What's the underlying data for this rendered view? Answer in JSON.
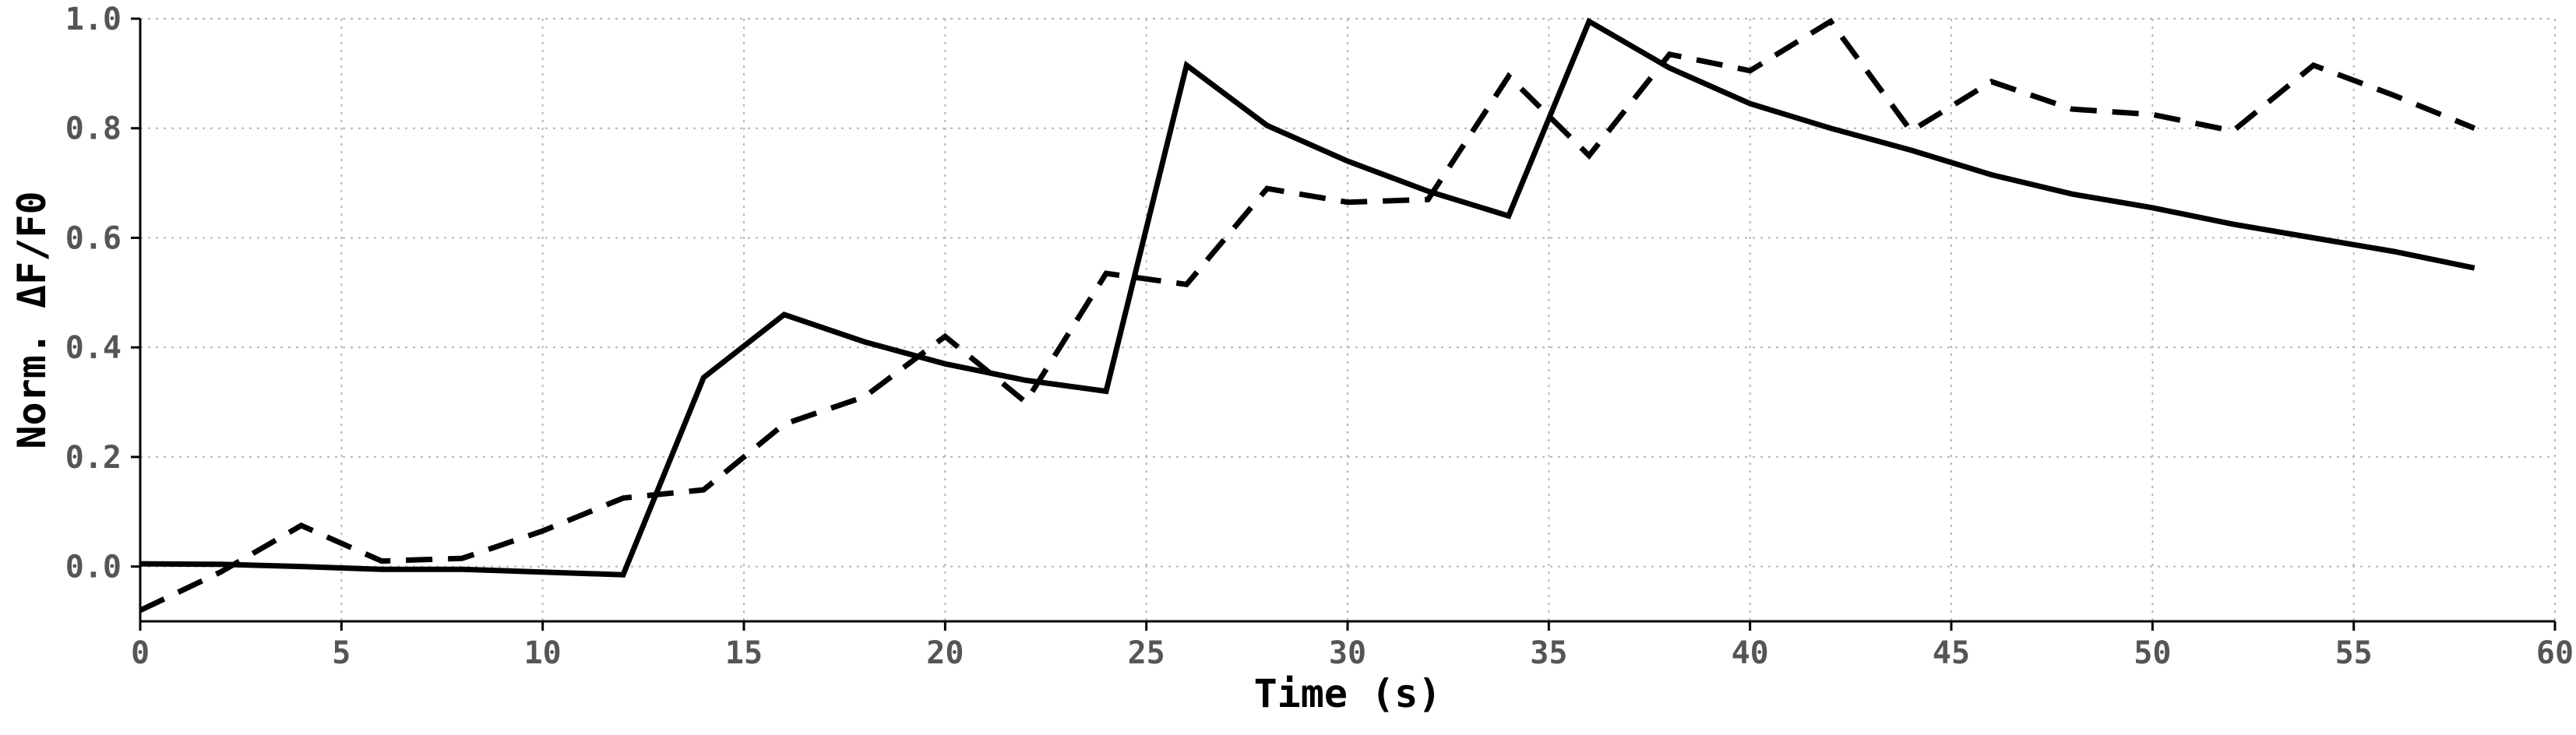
{
  "chart_data": {
    "type": "line",
    "title": "",
    "xlabel": "Time (s)",
    "ylabel": "Norm. ΔF/F0",
    "xlim": [
      0,
      60
    ],
    "ylim": [
      -0.1,
      1.0
    ],
    "xticks": [
      0,
      5,
      10,
      15,
      20,
      25,
      30,
      35,
      40,
      45,
      50,
      55,
      60
    ],
    "yticks": [
      0.0,
      0.2,
      0.4,
      0.6,
      0.8,
      1.0
    ],
    "xtick_labels": [
      "0",
      "5",
      "10",
      "15",
      "20",
      "25",
      "30",
      "35",
      "40",
      "45",
      "50",
      "55",
      "60"
    ],
    "ytick_labels": [
      "0.0",
      "0.2",
      "0.4",
      "0.6",
      "0.8",
      "1.0"
    ],
    "grid": true,
    "legend": "none",
    "series": [
      {
        "style": "solid",
        "color": "#000000",
        "x": [
          0,
          2,
          4,
          6,
          8,
          10,
          12,
          14,
          16,
          18,
          20,
          22,
          24,
          26,
          28,
          30,
          32,
          34,
          36,
          38,
          40,
          42,
          44,
          46,
          48,
          50,
          52,
          54,
          56,
          58
        ],
        "y": [
          0.005,
          0.004,
          0.0,
          -0.005,
          -0.005,
          -0.01,
          -0.015,
          0.345,
          0.46,
          0.41,
          0.37,
          0.34,
          0.32,
          0.915,
          0.805,
          0.74,
          0.685,
          0.64,
          0.995,
          0.91,
          0.845,
          0.8,
          0.76,
          0.715,
          0.68,
          0.655,
          0.625,
          0.6,
          0.575,
          0.545
        ]
      },
      {
        "style": "dashed",
        "color": "#000000",
        "x": [
          0,
          2,
          4,
          6,
          8,
          10,
          12,
          14,
          16,
          18,
          20,
          22,
          24,
          26,
          28,
          30,
          32,
          34,
          36,
          38,
          40,
          42,
          44,
          46,
          48,
          50,
          52,
          54,
          56,
          58
        ],
        "y": [
          -0.08,
          -0.01,
          0.075,
          0.01,
          0.015,
          0.065,
          0.125,
          0.14,
          0.26,
          0.31,
          0.42,
          0.3,
          0.535,
          0.515,
          0.69,
          0.665,
          0.67,
          0.895,
          0.75,
          0.935,
          0.905,
          0.995,
          0.795,
          0.885,
          0.835,
          0.825,
          0.795,
          0.915,
          0.86,
          0.8
        ]
      }
    ]
  }
}
